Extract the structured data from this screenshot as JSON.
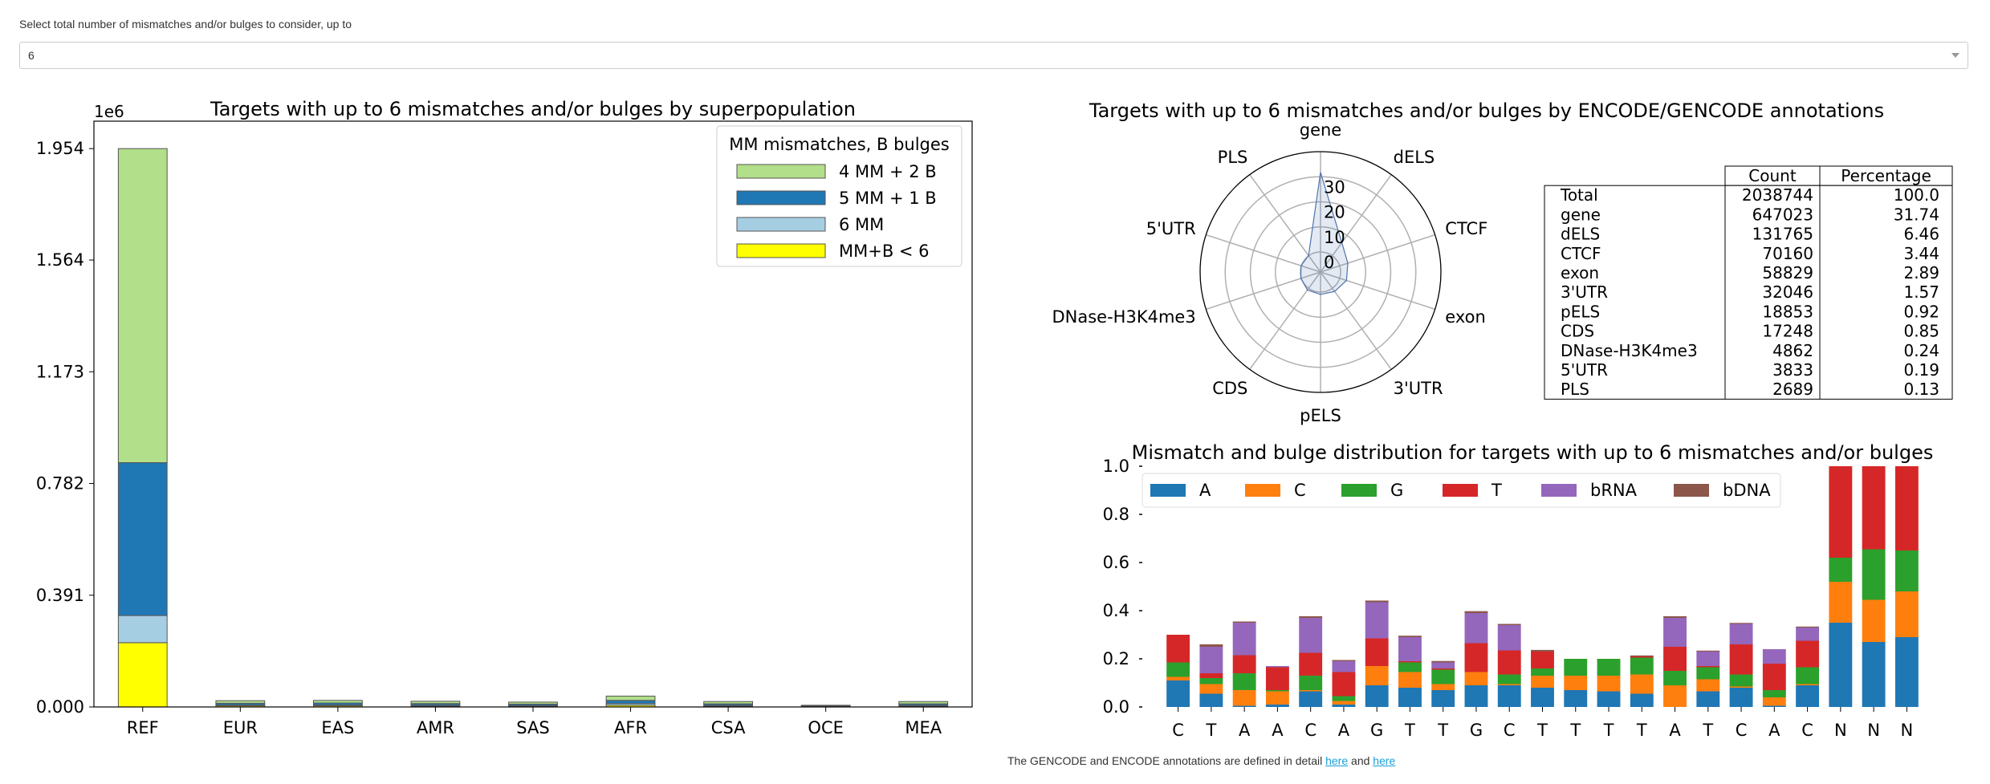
{
  "selector": {
    "label": "Select total number of mismatches and/or bulges to consider, up to",
    "value": "6"
  },
  "footer": {
    "text_before": "The GENCODE and ENCODE annotations are defined in detail ",
    "link1": "here",
    "text_between": " and ",
    "link2": "here"
  },
  "chart_data": [
    {
      "type": "bar",
      "stacked": true,
      "title": "Targets with up to 6 mismatches and/or bulges by superpopulation",
      "scale_label": "1e6",
      "categories": [
        "REF",
        "EUR",
        "EAS",
        "AMR",
        "SAS",
        "AFR",
        "CSA",
        "OCE",
        "MEA"
      ],
      "yticks": [
        "0.000",
        "0.391",
        "0.782",
        "1.173",
        "1.564",
        "1.954"
      ],
      "ylim": [
        0,
        2.05
      ],
      "legend_title": "MM mismatches, B bulges",
      "legend_position": "top-right",
      "series": [
        {
          "name": "MM+B < 6",
          "color": "#ffff00",
          "values": [
            0.225,
            0.004,
            0.004,
            0.003,
            0.003,
            0.006,
            0.003,
            0.001,
            0.003
          ]
        },
        {
          "name": "6 MM",
          "color": "#a6cee3",
          "values": [
            0.095,
            0.003,
            0.003,
            0.003,
            0.002,
            0.006,
            0.003,
            0.001,
            0.003
          ]
        },
        {
          "name": "5 MM + 1 B",
          "color": "#1f78b4",
          "values": [
            0.535,
            0.006,
            0.007,
            0.006,
            0.005,
            0.011,
            0.005,
            0.002,
            0.005
          ]
        },
        {
          "name": "4 MM + 2 B",
          "color": "#b2df8a",
          "values": [
            1.099,
            0.009,
            0.009,
            0.008,
            0.007,
            0.015,
            0.008,
            0.002,
            0.008
          ]
        }
      ]
    },
    {
      "type": "radar",
      "title": "Targets with up to 6 mismatches and/or bulges by ENCODE/GENCODE annotations",
      "axes": [
        "gene",
        "dELS",
        "CTCF",
        "exon",
        "3'UTR",
        "pELS",
        "CDS",
        "DNase-H3K4me3",
        "5'UTR",
        "PLS"
      ],
      "radial_ticks": [
        "0",
        "10",
        "20",
        "30"
      ],
      "rlim": [
        -8,
        40
      ],
      "values": [
        31.74,
        6.46,
        3.44,
        2.89,
        1.57,
        0.92,
        0.85,
        0.24,
        0.19,
        0.13
      ],
      "color": "#4c72b0"
    },
    {
      "type": "table",
      "columns": [
        "",
        "Count",
        "Percentage"
      ],
      "rows": [
        [
          "Total",
          "2038744",
          "100.0"
        ],
        [
          "gene",
          "647023",
          "31.74"
        ],
        [
          "dELS",
          "131765",
          "6.46"
        ],
        [
          "CTCF",
          "70160",
          "3.44"
        ],
        [
          "exon",
          "58829",
          "2.89"
        ],
        [
          "3'UTR",
          "32046",
          "1.57"
        ],
        [
          "pELS",
          "18853",
          "0.92"
        ],
        [
          "CDS",
          "17248",
          "0.85"
        ],
        [
          "DNase-H3K4me3",
          "4862",
          "0.24"
        ],
        [
          "5'UTR",
          "3833",
          "0.19"
        ],
        [
          "PLS",
          "2689",
          "0.13"
        ]
      ]
    },
    {
      "type": "bar",
      "stacked": true,
      "title": "Mismatch and bulge distribution for targets with up to 6 mismatches and/or bulges",
      "categories": [
        "C",
        "T",
        "A",
        "A",
        "C",
        "A",
        "G",
        "T",
        "T",
        "G",
        "C",
        "T",
        "T",
        "T",
        "T",
        "A",
        "T",
        "C",
        "A",
        "C",
        "N",
        "N",
        "N"
      ],
      "yticks": [
        "0.0",
        "0.2",
        "0.4",
        "0.6",
        "0.8",
        "1.0"
      ],
      "ylim": [
        0,
        1.0
      ],
      "legend_position": "top-left",
      "series": [
        {
          "name": "A",
          "color": "#1f77b4",
          "values": [
            0.11,
            0.055,
            0.005,
            0.01,
            0.065,
            0.01,
            0.09,
            0.08,
            0.07,
            0.09,
            0.09,
            0.08,
            0.07,
            0.065,
            0.055,
            0.0,
            0.065,
            0.08,
            0.005,
            0.09,
            0.35,
            0.27,
            0.29
          ]
        },
        {
          "name": "C",
          "color": "#ff7f0e",
          "values": [
            0.015,
            0.04,
            0.065,
            0.055,
            0.005,
            0.015,
            0.08,
            0.065,
            0.025,
            0.055,
            0.005,
            0.05,
            0.06,
            0.065,
            0.08,
            0.09,
            0.05,
            0.005,
            0.035,
            0.005,
            0.17,
            0.175,
            0.19
          ]
        },
        {
          "name": "G",
          "color": "#2ca02c",
          "values": [
            0.06,
            0.025,
            0.07,
            0.005,
            0.06,
            0.02,
            0.0,
            0.04,
            0.06,
            0.0,
            0.04,
            0.03,
            0.07,
            0.07,
            0.07,
            0.06,
            0.05,
            0.05,
            0.03,
            0.07,
            0.1,
            0.21,
            0.17
          ]
        },
        {
          "name": "T",
          "color": "#d62728",
          "values": [
            0.115,
            0.02,
            0.075,
            0.095,
            0.095,
            0.1,
            0.115,
            0.005,
            0.005,
            0.12,
            0.1,
            0.07,
            0.0,
            0.0,
            0.005,
            0.1,
            0.005,
            0.125,
            0.11,
            0.11,
            0.38,
            0.345,
            0.35
          ]
        },
        {
          "name": "bRNA",
          "color": "#9467bd",
          "values": [
            0.0,
            0.11,
            0.135,
            0.005,
            0.145,
            0.045,
            0.15,
            0.1,
            0.025,
            0.125,
            0.105,
            0.0,
            0.0,
            0.0,
            0.0,
            0.12,
            0.06,
            0.085,
            0.06,
            0.055,
            0.0,
            0.0,
            0.0
          ]
        },
        {
          "name": "bDNA",
          "color": "#8c564b",
          "values": [
            0.0,
            0.01,
            0.005,
            0.0,
            0.007,
            0.005,
            0.007,
            0.006,
            0.006,
            0.008,
            0.005,
            0.007,
            0.0,
            0.0,
            0.004,
            0.007,
            0.004,
            0.004,
            0.0,
            0.004,
            0.0,
            0.0,
            0.0
          ]
        }
      ]
    }
  ]
}
